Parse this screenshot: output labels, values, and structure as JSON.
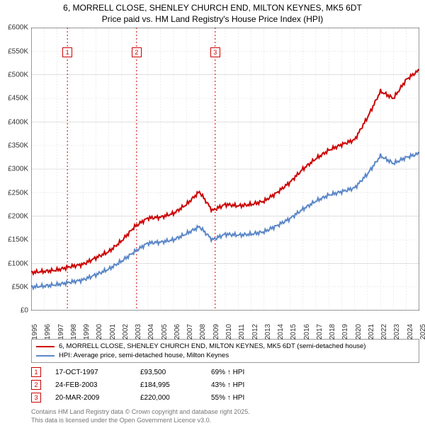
{
  "title_line1": "6, MORRELL CLOSE, SHENLEY CHURCH END, MILTON KEYNES, MK5 6DT",
  "title_line2": "Price paid vs. HM Land Registry's House Price Index (HPI)",
  "chart": {
    "type": "line",
    "x_years": [
      1995,
      1996,
      1997,
      1998,
      1999,
      2000,
      2001,
      2002,
      2003,
      2004,
      2005,
      2006,
      2007,
      2008,
      2009,
      2010,
      2011,
      2012,
      2013,
      2014,
      2015,
      2016,
      2017,
      2018,
      2019,
      2020,
      2021,
      2022,
      2023,
      2024,
      2025
    ],
    "ylim": [
      0,
      600
    ],
    "ytick_step": 50,
    "ytick_labels": [
      "£0",
      "£50K",
      "£100K",
      "£150K",
      "£200K",
      "£250K",
      "£300K",
      "£350K",
      "£400K",
      "£450K",
      "£500K",
      "£550K",
      "£600K"
    ],
    "grid_color": "#999999",
    "background_color": "#ffffff",
    "axis_fontsize": 10,
    "line_width": 2,
    "series": [
      {
        "name": "6, MORRELL CLOSE, SHENLEY CHURCH END, MILTON KEYNES, MK5 6DT (semi-detached house)",
        "color": "#cc0000",
        "values_by_year": [
          81,
          83,
          86,
          93,
          98,
          112,
          125,
          148,
          178,
          196,
          198,
          206,
          225,
          252,
          212,
          225,
          222,
          225,
          232,
          250,
          272,
          300,
          322,
          340,
          352,
          362,
          410,
          465,
          450,
          490,
          510
        ]
      },
      {
        "name": "HPI: Average price, semi-detached house, Milton Keynes",
        "color": "#5b87c7",
        "values_by_year": [
          50,
          52,
          55,
          60,
          65,
          76,
          88,
          105,
          125,
          143,
          145,
          150,
          163,
          178,
          150,
          162,
          160,
          162,
          167,
          180,
          195,
          215,
          232,
          245,
          252,
          260,
          290,
          328,
          312,
          325,
          333
        ]
      }
    ],
    "markers": [
      {
        "n": "1",
        "year": 1997.8,
        "color": "#cc0000"
      },
      {
        "n": "2",
        "year": 2003.15,
        "color": "#cc0000"
      },
      {
        "n": "3",
        "year": 2009.22,
        "color": "#cc0000"
      }
    ]
  },
  "legend": {
    "rows": [
      {
        "color": "#cc0000",
        "label": "6, MORRELL CLOSE, SHENLEY CHURCH END, MILTON KEYNES, MK5 6DT (semi-detached house)"
      },
      {
        "color": "#5b87c7",
        "label": "HPI: Average price, semi-detached house, Milton Keynes"
      }
    ]
  },
  "notes": [
    {
      "n": "1",
      "color": "#cc0000",
      "date": "17-OCT-1997",
      "price": "£93,500",
      "delta": "69% ↑ HPI"
    },
    {
      "n": "2",
      "color": "#cc0000",
      "date": "24-FEB-2003",
      "price": "£184,995",
      "delta": "43% ↑ HPI"
    },
    {
      "n": "3",
      "color": "#cc0000",
      "date": "20-MAR-2009",
      "price": "£220,000",
      "delta": "55% ↑ HPI"
    }
  ],
  "footer_line1": "Contains HM Land Registry data © Crown copyright and database right 2025.",
  "footer_line2": "This data is licensed under the Open Government Licence v3.0."
}
